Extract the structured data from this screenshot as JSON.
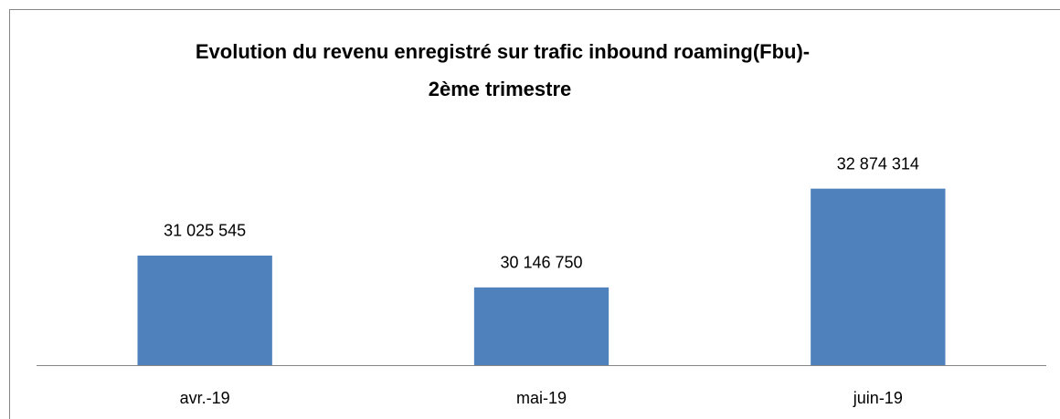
{
  "chart_data": {
    "type": "bar",
    "title": [
      "Evolution  du revenu enregistré sur trafic inbound roaming(Fbu)-",
      "2ème trimestre"
    ],
    "categories": [
      "avr.-19",
      "mai-19",
      "juin-19"
    ],
    "values": [
      31025545,
      30146750,
      32874314
    ],
    "value_labels": [
      "31 025 545",
      "30 146 750",
      "32 874 314"
    ],
    "color": "#4f81bd",
    "ylim": [
      28000000,
      34000000
    ]
  }
}
